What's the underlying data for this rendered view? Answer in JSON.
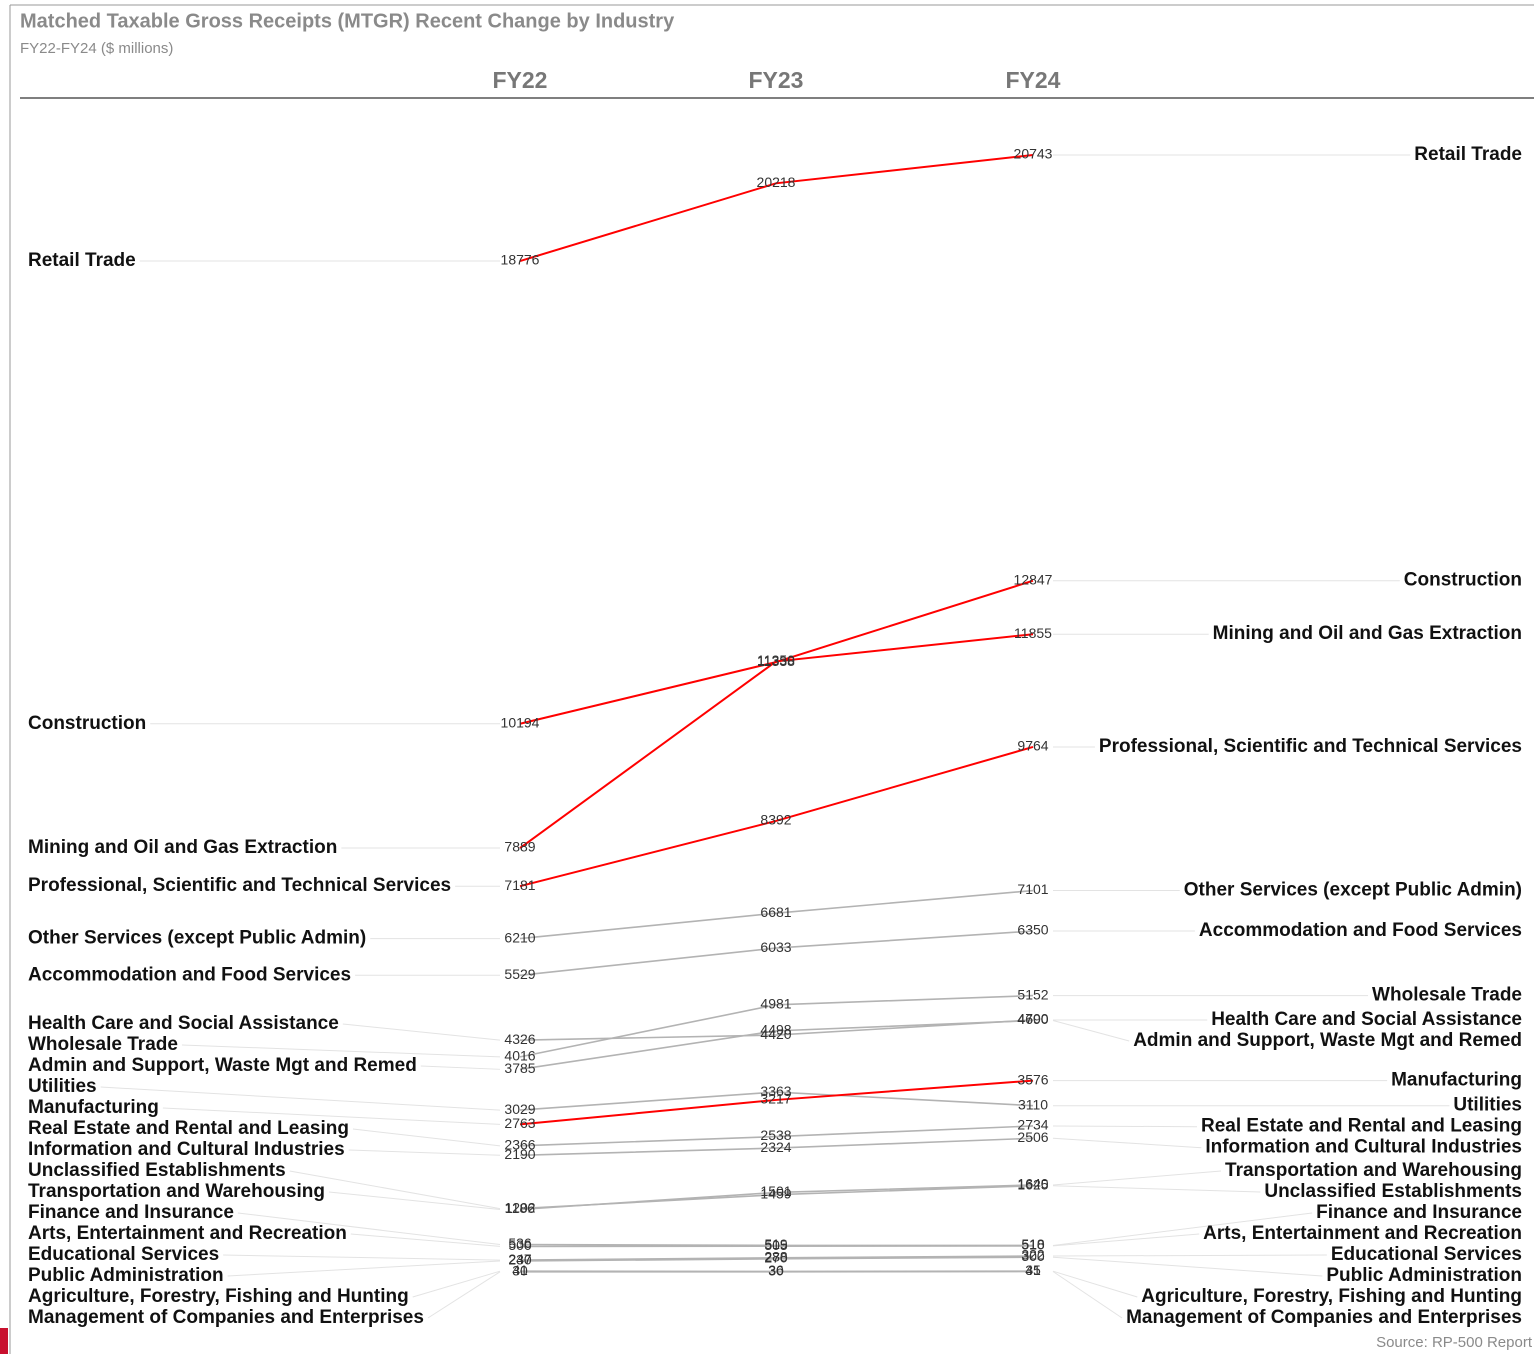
{
  "chart_data": {
    "type": "slope",
    "title": "Matched Taxable Gross Receipts (MTGR) Recent Change by Industry",
    "subtitle": "FY22-FY24 ($ millions)",
    "source": "Source: RP-500 Report",
    "categories": [
      "FY22",
      "FY23",
      "FY24"
    ],
    "ylim": [
      -1050,
      21800
    ],
    "series": [
      {
        "name": "Retail Trade",
        "color": "#ff0000",
        "values": [
          18776,
          20218,
          20743
        ]
      },
      {
        "name": "Construction",
        "color": "#ff0000",
        "values": [
          10194,
          11338,
          12847
        ]
      },
      {
        "name": "Mining and Oil and Gas Extraction",
        "color": "#ff0000",
        "values": [
          7889,
          11350,
          11855
        ]
      },
      {
        "name": "Professional, Scientific and Technical Services",
        "color": "#ff0000",
        "values": [
          7181,
          8392,
          9764
        ]
      },
      {
        "name": "Other Services (except Public Admin)",
        "color": "#b3b3b3",
        "values": [
          6210,
          6681,
          7101
        ]
      },
      {
        "name": "Accommodation and Food Services",
        "color": "#b3b3b3",
        "values": [
          5529,
          6033,
          6350
        ]
      },
      {
        "name": "Health Care and Social Assistance",
        "color": "#b3b3b3",
        "values": [
          4326,
          4420,
          4700
        ]
      },
      {
        "name": "Wholesale Trade",
        "color": "#b3b3b3",
        "values": [
          4016,
          4981,
          5152
        ]
      },
      {
        "name": "Admin and Support, Waste Mgt and Remed",
        "color": "#b3b3b3",
        "values": [
          3785,
          4498,
          4690
        ]
      },
      {
        "name": "Utilities",
        "color": "#b3b3b3",
        "values": [
          3029,
          3363,
          3110
        ]
      },
      {
        "name": "Manufacturing",
        "color": "#ff0000",
        "values": [
          2763,
          3217,
          3576
        ]
      },
      {
        "name": "Real Estate and Rental and Leasing",
        "color": "#b3b3b3",
        "values": [
          2366,
          2538,
          2734
        ]
      },
      {
        "name": "Information and Cultural Industries",
        "color": "#b3b3b3",
        "values": [
          2190,
          2324,
          2506
        ]
      },
      {
        "name": "Unclassified Establishments",
        "color": "#b3b3b3",
        "values": [
          1202,
          1459,
          1625
        ]
      },
      {
        "name": "Transportation and Warehousing",
        "color": "#b3b3b3",
        "values": [
          1186,
          1501,
          1640
        ]
      },
      {
        "name": "Finance and Insurance",
        "color": "#b3b3b3",
        "values": [
          536,
          519,
          518
        ]
      },
      {
        "name": "Arts, Entertainment and Recreation",
        "color": "#b3b3b3",
        "values": [
          500,
          505,
          510
        ]
      },
      {
        "name": "Educational Services",
        "color": "#b3b3b3",
        "values": [
          247,
          288,
          322
        ]
      },
      {
        "name": "Public Administration",
        "color": "#b3b3b3",
        "values": [
          230,
          270,
          300
        ]
      },
      {
        "name": "Agriculture, Forestry, Fishing and Hunting",
        "color": "#b3b3b3",
        "values": [
          41,
          36,
          41
        ]
      },
      {
        "name": "Management of Companies and Enterprises",
        "color": "#b3b3b3",
        "values": [
          30,
          30,
          35
        ]
      }
    ]
  }
}
